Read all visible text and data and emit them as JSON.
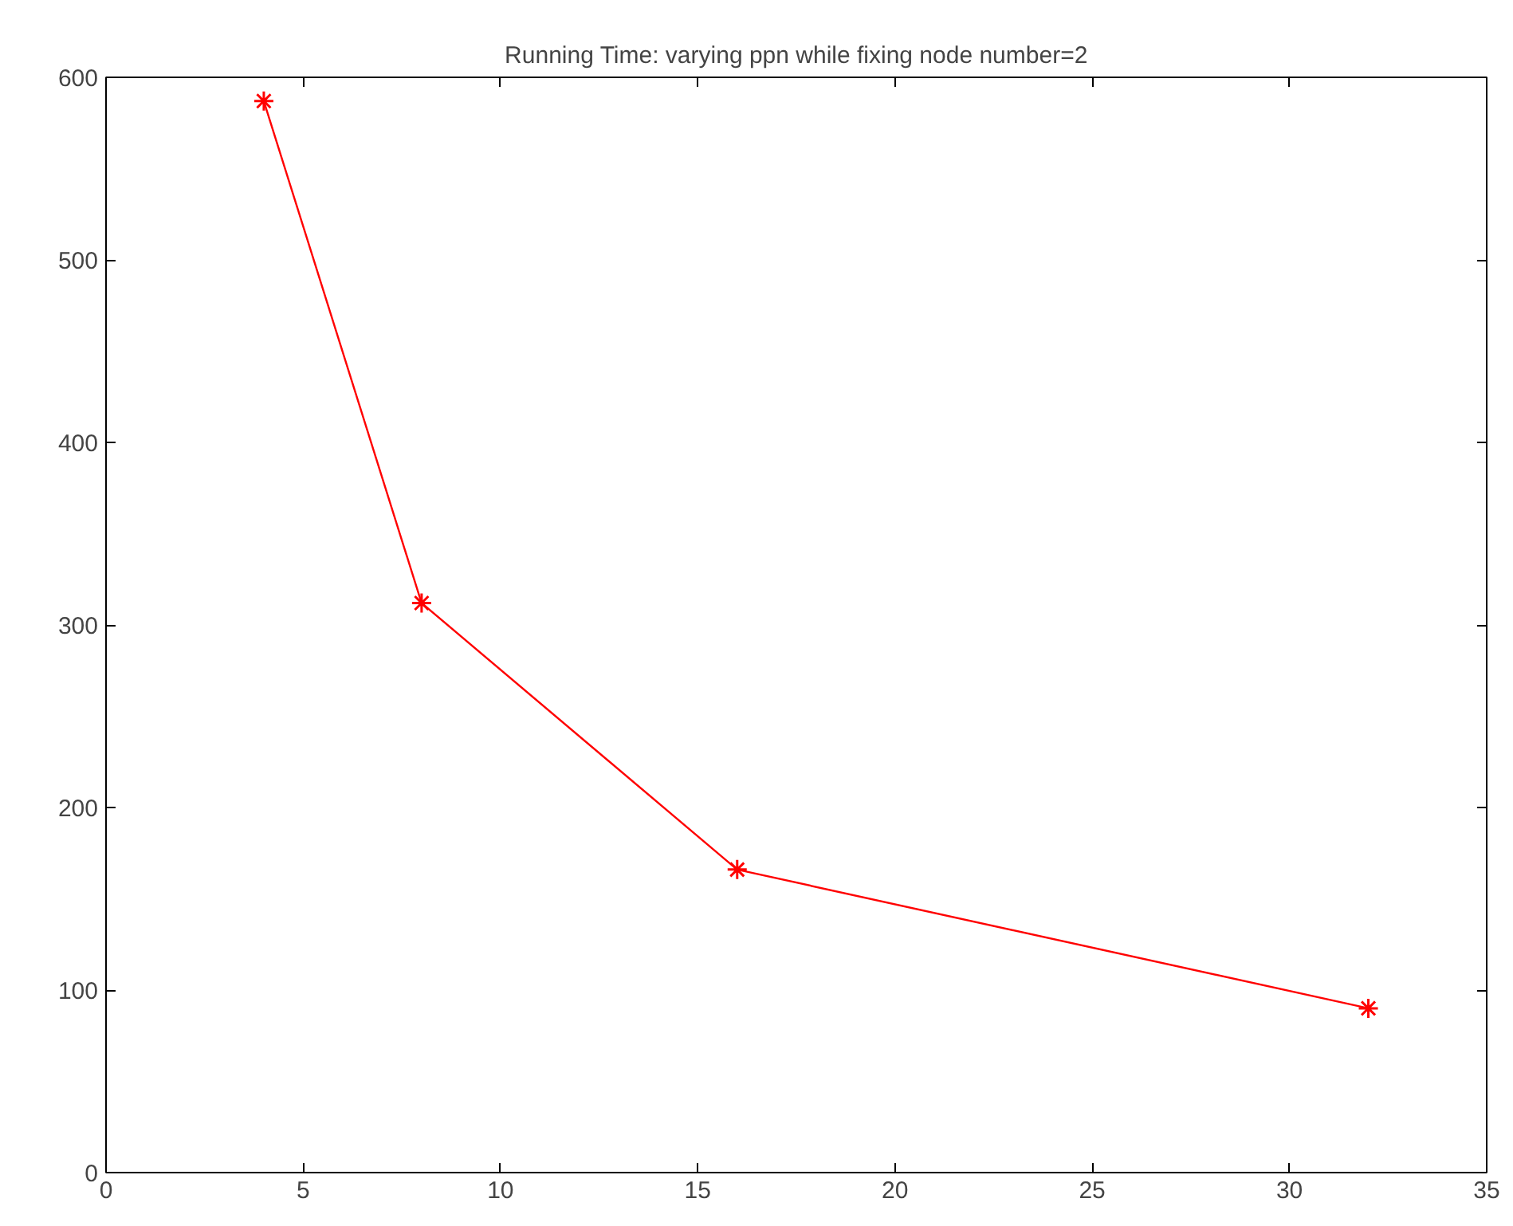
{
  "chart_data": {
    "type": "line",
    "title": "Running Time: varying ppn while fixing node number=2",
    "x": [
      4,
      8,
      16,
      32
    ],
    "series": [
      {
        "color": "#ff0000",
        "values": [
          587,
          312,
          166,
          90
        ]
      }
    ],
    "xlim": [
      0,
      35
    ],
    "xticks": [
      0,
      5,
      10,
      15,
      20,
      25,
      30,
      35
    ],
    "ylim": [
      0,
      600
    ],
    "yticks": [
      0,
      100,
      200,
      300,
      400,
      500,
      600
    ],
    "grid": false,
    "marker": "cross",
    "line_style": "solid"
  }
}
